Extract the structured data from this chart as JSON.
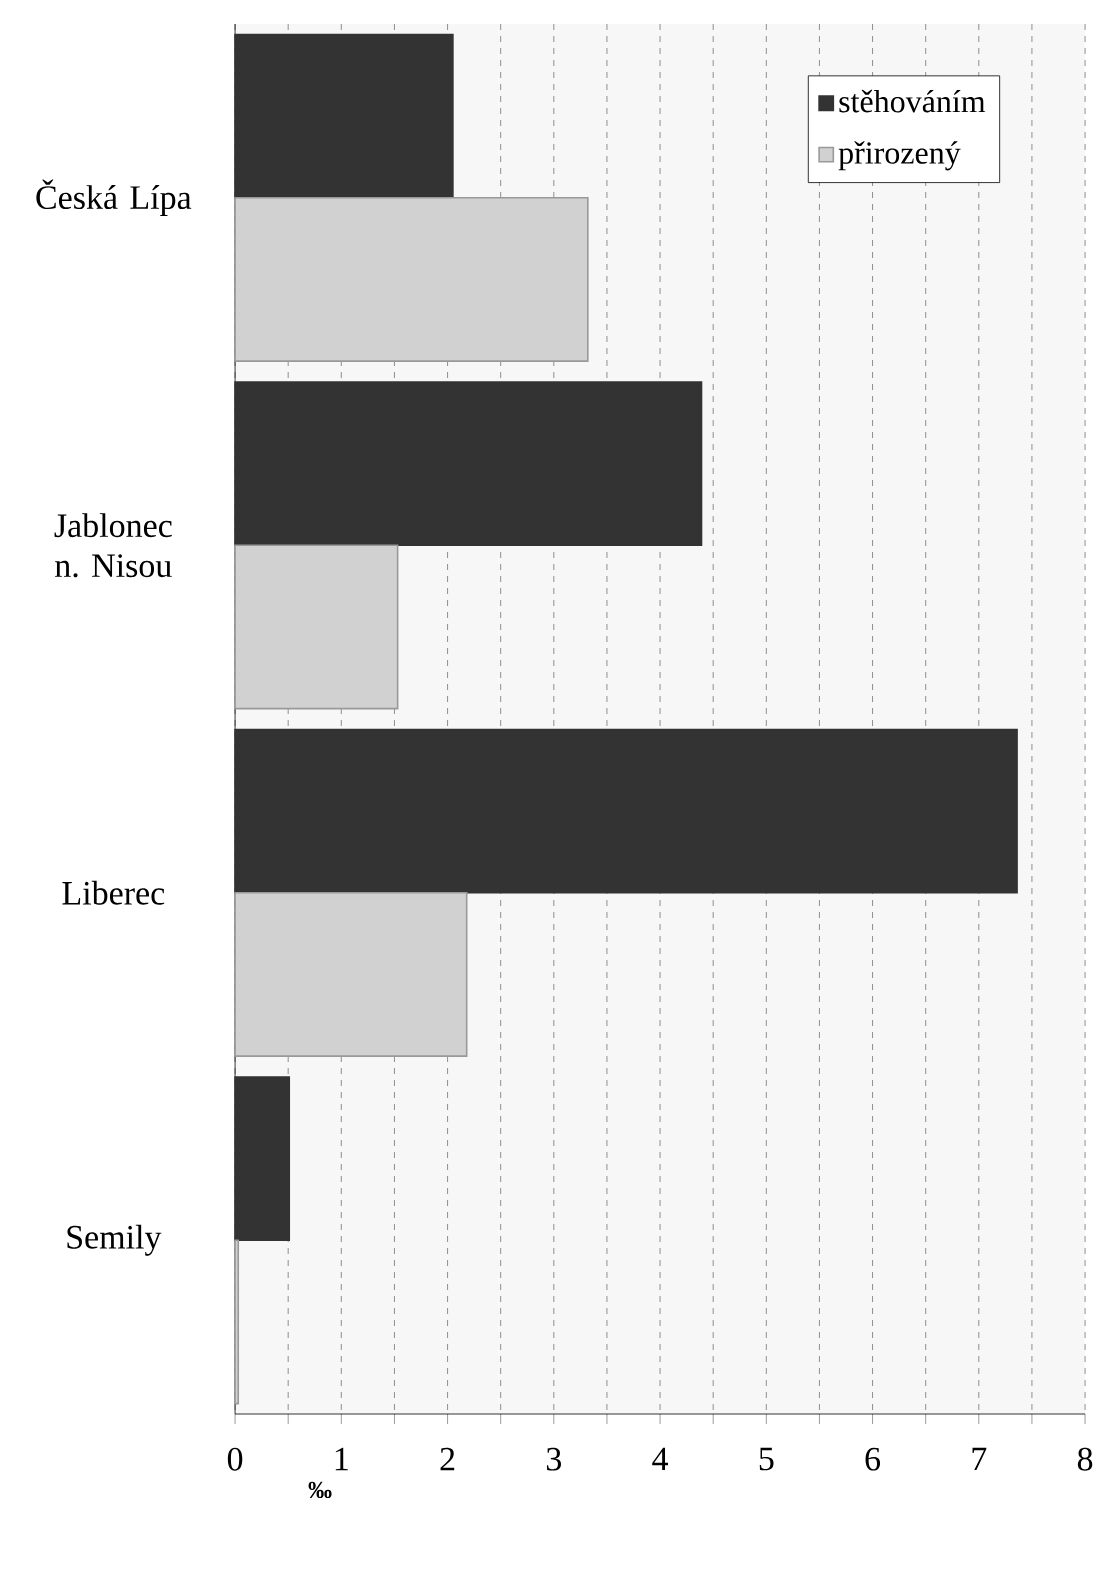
{
  "chart_data": {
    "type": "bar",
    "orientation": "horizontal",
    "xlabel": "‰",
    "categories": [
      "Česká Lípa",
      "Jablonec n. Nisou",
      "Liberec",
      "Semily"
    ],
    "series": [
      {
        "name": "stěhováním",
        "color": "#333333",
        "values": [
          2.05,
          4.39,
          7.36,
          0.51
        ]
      },
      {
        "name": "přirozený",
        "color": "#999999",
        "values": [
          3.32,
          1.53,
          2.18,
          0.03
        ]
      }
    ],
    "xlim": [
      0,
      8
    ],
    "xticks": [
      0,
      {
        "value": 0.5,
        "label": null
      },
      1,
      {
        "value": 1.5,
        "label": null
      },
      2,
      {
        "value": 2.5,
        "label": null
      },
      3,
      {
        "value": 3.5,
        "label": null
      },
      4,
      {
        "value": 4.5,
        "label": null
      },
      5,
      {
        "value": 5.5,
        "label": null
      },
      6,
      {
        "value": 6.5,
        "label": null
      },
      7,
      {
        "value": 7.5,
        "label": null
      },
      8
    ],
    "grid": "x",
    "legend": "top right"
  }
}
